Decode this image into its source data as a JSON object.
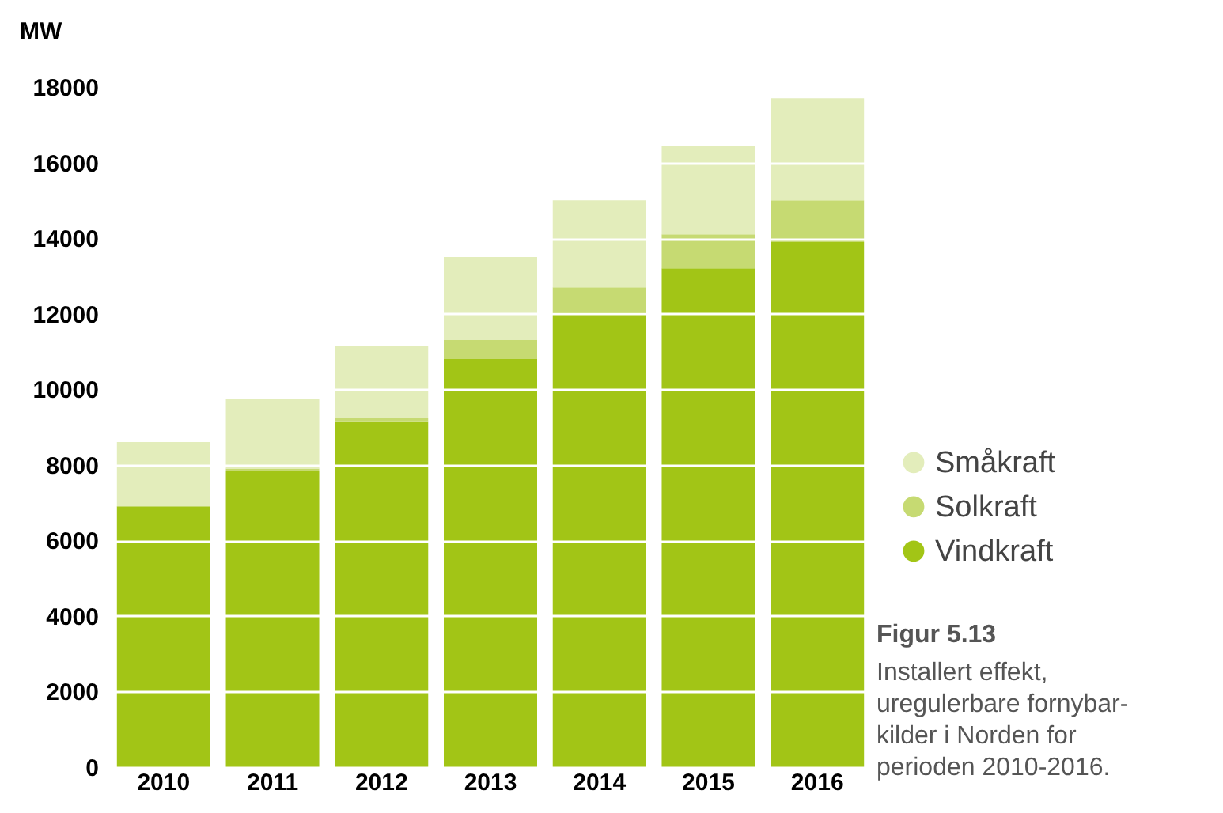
{
  "chart_data": {
    "type": "bar",
    "stacked": true,
    "ylabel": "MW",
    "categories": [
      "2010",
      "2011",
      "2012",
      "2013",
      "2014",
      "2015",
      "2016"
    ],
    "series": [
      {
        "name": "Vindkraft",
        "color": "#a2c516",
        "values": [
          6900,
          7850,
          9150,
          10800,
          12050,
          13200,
          13900
        ]
      },
      {
        "name": "Solkraft",
        "color": "#c6da72",
        "values": [
          0,
          50,
          100,
          500,
          650,
          900,
          1100
        ]
      },
      {
        "name": "Småkraft",
        "color": "#e3edbb",
        "values": [
          1700,
          1850,
          1900,
          2200,
          2300,
          2350,
          2700
        ]
      }
    ],
    "ylim": [
      0,
      18000
    ],
    "yticks": [
      0,
      2000,
      4000,
      6000,
      8000,
      10000,
      12000,
      14000,
      16000,
      18000
    ],
    "grid": "y",
    "legend": "right",
    "annotations": [
      "Figur 5.13",
      "Installert effekt,",
      "uregulerbare fornybar-",
      "kilder i Norden for",
      "perioden 2010-2016."
    ]
  }
}
